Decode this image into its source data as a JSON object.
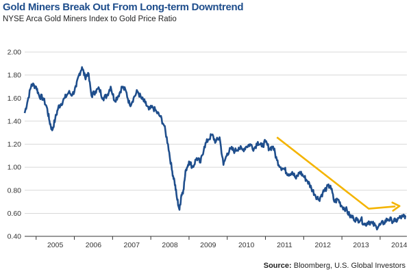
{
  "header": {
    "title": "Gold Miners Break Out From Long-term Downtrend",
    "subtitle": "NYSE Arca Gold Miners Index to Gold Price Ratio"
  },
  "footer": {
    "source_label": "Source:",
    "source_text": " Bloomberg, U.S. Global Investors"
  },
  "colors": {
    "line": "#1f4e8c",
    "arrow": "#f4b400",
    "title": "#1f4e8c",
    "grid": "#cccccc"
  },
  "chart_data": {
    "type": "line",
    "title": "Gold Miners Break Out From Long-term Downtrend",
    "subtitle": "NYSE Arca Gold Miners Index to Gold Price Ratio",
    "xlabel": "",
    "ylabel": "",
    "xlim": [
      2004.7,
      2014.7
    ],
    "ylim": [
      0.4,
      2.0
    ],
    "y_ticks": [
      "0.40",
      "0.60",
      "0.80",
      "1.00",
      "1.20",
      "1.40",
      "1.60",
      "1.80",
      "2.00"
    ],
    "x_ticks": [
      "2005",
      "2006",
      "2007",
      "2008",
      "2009",
      "2010",
      "2011",
      "2012",
      "2013",
      "2014"
    ],
    "grid": "horizontal",
    "legend": "none",
    "series": [
      {
        "x": [
          2004.7,
          2004.78,
          2004.88,
          2005.0,
          2005.08,
          2005.18,
          2005.28,
          2005.35,
          2005.42,
          2005.5,
          2005.58,
          2005.65,
          2005.75,
          2005.85,
          2005.95,
          2006.05,
          2006.12,
          2006.2,
          2006.28,
          2006.36,
          2006.45,
          2006.55,
          2006.65,
          2006.75,
          2006.85,
          2006.95,
          2007.05,
          2007.15,
          2007.25,
          2007.35,
          2007.45,
          2007.55,
          2007.65,
          2007.75,
          2007.85,
          2007.95,
          2008.05,
          2008.15,
          2008.25,
          2008.35,
          2008.45,
          2008.55,
          2008.62,
          2008.68,
          2008.75,
          2008.8,
          2008.85,
          2008.92,
          2009.0,
          2009.1,
          2009.2,
          2009.3,
          2009.4,
          2009.5,
          2009.6,
          2009.7,
          2009.8,
          2009.9,
          2010.0,
          2010.1,
          2010.2,
          2010.3,
          2010.4,
          2010.5,
          2010.6,
          2010.7,
          2010.8,
          2010.9,
          2011.0,
          2011.1,
          2011.2,
          2011.3,
          2011.4,
          2011.5,
          2011.6,
          2011.7,
          2011.8,
          2011.9,
          2012.0,
          2012.1,
          2012.2,
          2012.3,
          2012.4,
          2012.5,
          2012.6,
          2012.7,
          2012.8,
          2012.9,
          2013.0,
          2013.1,
          2013.2,
          2013.3,
          2013.4,
          2013.5,
          2013.6,
          2013.7,
          2013.8,
          2013.9,
          2014.0,
          2014.1,
          2014.2,
          2014.3,
          2014.4,
          2014.5,
          2014.6,
          2014.66
        ],
        "values": [
          1.47,
          1.58,
          1.72,
          1.7,
          1.62,
          1.6,
          1.52,
          1.4,
          1.32,
          1.42,
          1.52,
          1.55,
          1.6,
          1.65,
          1.63,
          1.7,
          1.8,
          1.87,
          1.78,
          1.82,
          1.62,
          1.66,
          1.68,
          1.6,
          1.62,
          1.7,
          1.58,
          1.62,
          1.7,
          1.66,
          1.54,
          1.6,
          1.66,
          1.6,
          1.56,
          1.5,
          1.52,
          1.48,
          1.44,
          1.36,
          1.2,
          0.98,
          0.88,
          0.74,
          0.63,
          0.76,
          0.8,
          0.98,
          1.05,
          1.0,
          1.08,
          1.04,
          1.18,
          1.24,
          1.28,
          1.22,
          1.26,
          1.02,
          1.12,
          1.16,
          1.14,
          1.17,
          1.15,
          1.18,
          1.2,
          1.16,
          1.22,
          1.18,
          1.22,
          1.16,
          1.18,
          1.06,
          1.0,
          0.98,
          0.94,
          0.96,
          0.9,
          0.96,
          0.92,
          0.88,
          0.82,
          0.76,
          0.72,
          0.78,
          0.82,
          0.84,
          0.7,
          0.72,
          0.66,
          0.64,
          0.58,
          0.56,
          0.54,
          0.55,
          0.5,
          0.53,
          0.51,
          0.48,
          0.5,
          0.52,
          0.55,
          0.54,
          0.53,
          0.56,
          0.57,
          0.58
        ]
      }
    ],
    "annotations": [
      {
        "type": "arrow",
        "from": [
          2011.3,
          1.26
        ],
        "via": [
          2013.7,
          0.64
        ],
        "to": [
          2014.4,
          0.66
        ]
      }
    ]
  }
}
